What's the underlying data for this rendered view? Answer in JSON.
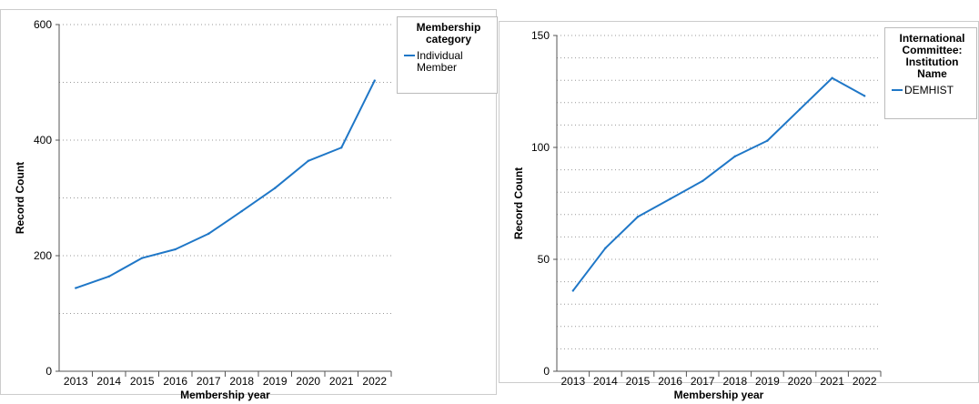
{
  "chart_data": [
    {
      "type": "line",
      "xlabel": "Membership year",
      "ylabel": "Record Count",
      "categories": [
        "2013",
        "2014",
        "2015",
        "2016",
        "2017",
        "2018",
        "2019",
        "2020",
        "2021",
        "2022"
      ],
      "series": [
        {
          "name": "Individual Member",
          "values": [
            144,
            164,
            196,
            211,
            238,
            277,
            317,
            364,
            387,
            503
          ]
        }
      ],
      "ylim": [
        0,
        600
      ],
      "yticks": [
        0,
        200,
        400,
        600
      ],
      "legend": {
        "title_lines": [
          "Membership",
          "category"
        ],
        "item_lines": [
          "Individual",
          "Member"
        ],
        "placement": "top-right"
      },
      "grid": true,
      "colors": {
        "line": "#1f77c7",
        "grid": "#999999",
        "axis": "#555555"
      }
    },
    {
      "type": "line",
      "xlabel": "Membership year",
      "ylabel": "Record Count",
      "categories": [
        "2013",
        "2014",
        "2015",
        "2016",
        "2017",
        "2018",
        "2019",
        "2020",
        "2021",
        "2022"
      ],
      "series": [
        {
          "name": "DEMHIST",
          "values": [
            36,
            55,
            69,
            77,
            85,
            96,
            103,
            117,
            131,
            123
          ]
        }
      ],
      "ylim": [
        0,
        150
      ],
      "yticks": [
        0,
        50,
        100,
        150
      ],
      "legend": {
        "title_lines": [
          "International",
          "Committee:",
          "Institution",
          "Name"
        ],
        "item_lines": [
          "DEMHIST"
        ],
        "placement": "top-right"
      },
      "grid": true,
      "colors": {
        "line": "#1f77c7",
        "grid": "#999999",
        "axis": "#555555"
      }
    }
  ]
}
